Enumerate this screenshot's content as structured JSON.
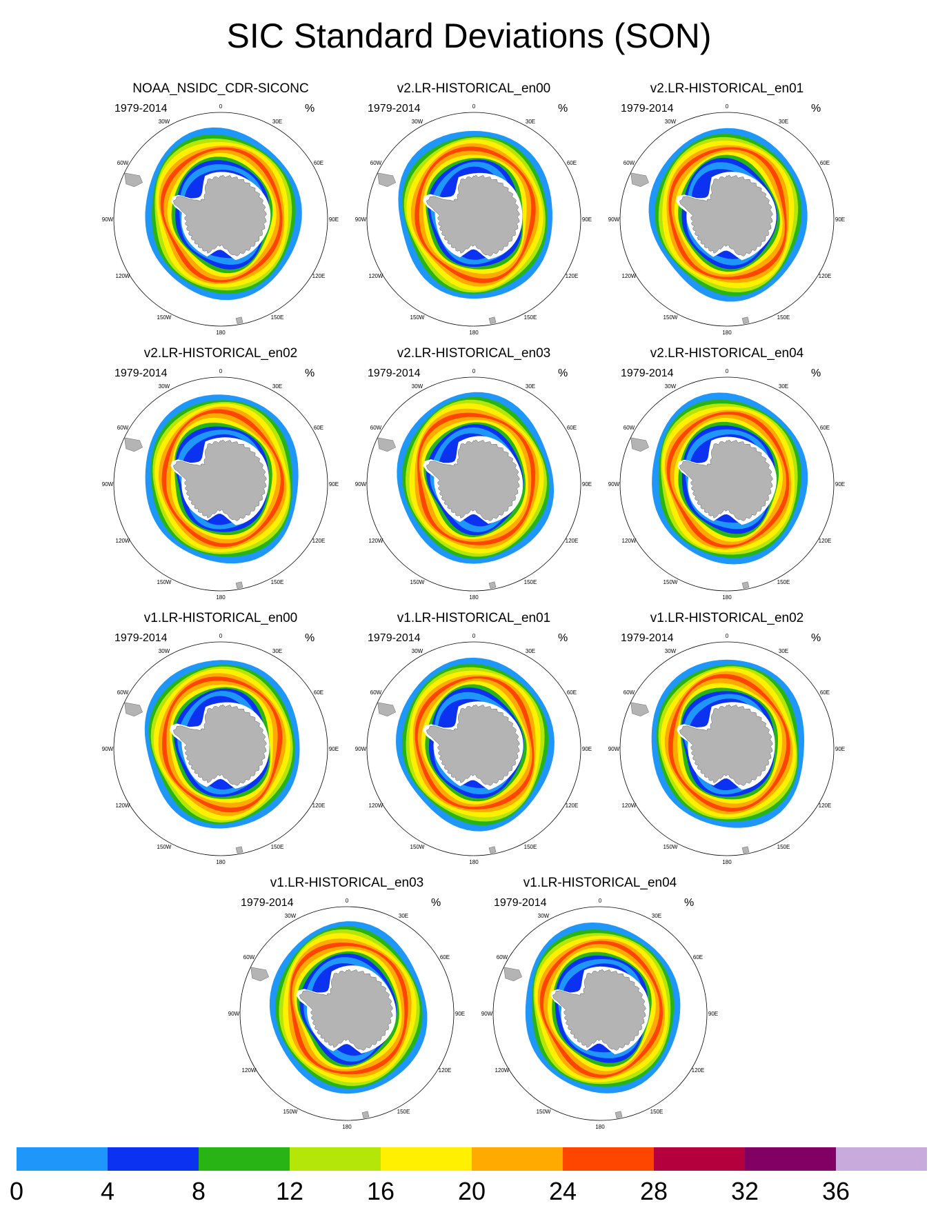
{
  "title": "SIC Standard Deviations (SON)",
  "panels": [
    {
      "title": "NOAA_NSIDC_CDR-SICONC",
      "period": "1979-2014",
      "unit": "%"
    },
    {
      "title": "v2.LR-HISTORICAL_en00",
      "period": "1979-2014",
      "unit": "%"
    },
    {
      "title": "v2.LR-HISTORICAL_en01",
      "period": "1979-2014",
      "unit": "%"
    },
    {
      "title": "v2.LR-HISTORICAL_en02",
      "period": "1979-2014",
      "unit": "%"
    },
    {
      "title": "v2.LR-HISTORICAL_en03",
      "period": "1979-2014",
      "unit": "%"
    },
    {
      "title": "v2.LR-HISTORICAL_en04",
      "period": "1979-2014",
      "unit": "%"
    },
    {
      "title": "v1.LR-HISTORICAL_en00",
      "period": "1979-2014",
      "unit": "%"
    },
    {
      "title": "v1.LR-HISTORICAL_en01",
      "period": "1979-2014",
      "unit": "%"
    },
    {
      "title": "v1.LR-HISTORICAL_en02",
      "period": "1979-2014",
      "unit": "%"
    },
    {
      "title": "v1.LR-HISTORICAL_en03",
      "period": "1979-2014",
      "unit": "%"
    },
    {
      "title": "v1.LR-HISTORICAL_en04",
      "period": "1979-2014",
      "unit": "%"
    }
  ],
  "longitude_labels": [
    "0",
    "30E",
    "60E",
    "90E",
    "120E",
    "150E",
    "180",
    "150W",
    "120W",
    "90W",
    "60W",
    "30W"
  ],
  "colorbar": {
    "labels": [
      "0",
      "4",
      "8",
      "12",
      "16",
      "20",
      "24",
      "28",
      "32",
      "36"
    ],
    "colors": [
      "#1e96fa",
      "#0a32f0",
      "#28b414",
      "#b4e60a",
      "#fff000",
      "#ffaa00",
      "#ff4600",
      "#b4003c",
      "#820064",
      "#c8aadc"
    ]
  },
  "map_colors": {
    "land": "#b4b4b4",
    "coast": "#646464"
  }
}
